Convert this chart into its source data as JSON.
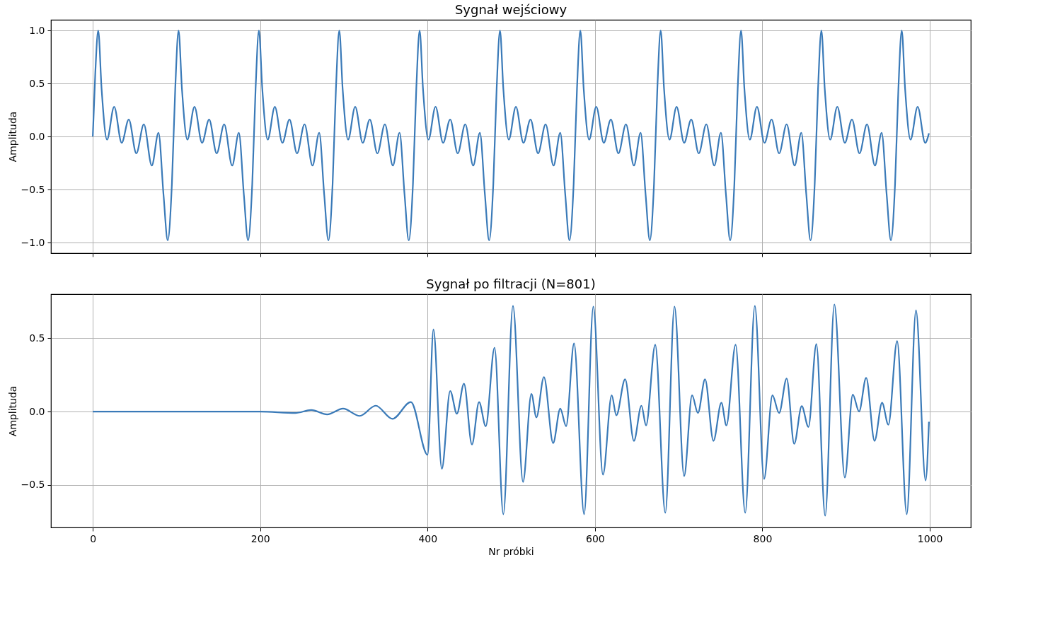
{
  "chart_data": [
    {
      "type": "line",
      "title": "Sygnał wejściowy",
      "ylabel": "Amplituda",
      "x": [
        0,
        3,
        6.5,
        10.5,
        17,
        25.5,
        34.5,
        43,
        52,
        61,
        70.5,
        78.5,
        84.5,
        89.5,
        94.5,
        98.5,
        102.5,
        106.5,
        113,
        121.5,
        130.5,
        139,
        148,
        157,
        166.5,
        174.5,
        180.5,
        185.5,
        190.5,
        194.5,
        198.5,
        202.5,
        209,
        217.5,
        226.5,
        235,
        244,
        253,
        262.5,
        270.5,
        276.5,
        281.5,
        286.5,
        290.5,
        294.5,
        298.5,
        305,
        313.5,
        322.5,
        331,
        340,
        349,
        358.5,
        366.5,
        372.5,
        377.5,
        382.5,
        386.5,
        390.5,
        394.5,
        401,
        409.5,
        418.5,
        427,
        436,
        445,
        454.5,
        462.5,
        468.5,
        473.5,
        478.5,
        482.5,
        486.5,
        490.5,
        497,
        505.5,
        514.5,
        523,
        532,
        541,
        550.5,
        558.5,
        564.5,
        569.5,
        574.5,
        578.5,
        582.5,
        586.5,
        593,
        601.5,
        610.5,
        619,
        628,
        637,
        646.5,
        654.5,
        660.5,
        665.5,
        670.5,
        674.5,
        678.5,
        682.5,
        689,
        697.5,
        706.5,
        715,
        724,
        733,
        742.5,
        750.5,
        756.5,
        761.5,
        766.5,
        770.5,
        774.5,
        778.5,
        785,
        793.5,
        802.5,
        811,
        820,
        829,
        838.5,
        846.5,
        852.5,
        857.5,
        862.5,
        866.5,
        870.5,
        874.5,
        881,
        889.5,
        898.5,
        907,
        916,
        925,
        934.5,
        942.5,
        948.5,
        953.5,
        958.5,
        962.5,
        966.5,
        970.5,
        977,
        985.5,
        994.5,
        999
      ],
      "series": [
        {
          "color": "#3a7ab8",
          "values": [
            0.0,
            0.6,
            1.0,
            0.45,
            -0.03,
            0.28,
            -0.06,
            0.16,
            -0.16,
            0.115,
            -0.275,
            0.035,
            -0.55,
            -0.98,
            -0.45,
            0.45,
            1.0,
            0.45,
            -0.03,
            0.28,
            -0.06,
            0.16,
            -0.16,
            0.115,
            -0.275,
            0.035,
            -0.55,
            -0.98,
            -0.45,
            0.45,
            1.0,
            0.45,
            -0.03,
            0.28,
            -0.06,
            0.16,
            -0.16,
            0.115,
            -0.275,
            0.035,
            -0.55,
            -0.98,
            -0.45,
            0.45,
            1.0,
            0.45,
            -0.03,
            0.28,
            -0.06,
            0.16,
            -0.16,
            0.115,
            -0.275,
            0.035,
            -0.55,
            -0.98,
            -0.45,
            0.45,
            1.0,
            0.45,
            -0.03,
            0.28,
            -0.06,
            0.16,
            -0.16,
            0.115,
            -0.275,
            0.035,
            -0.55,
            -0.98,
            -0.45,
            0.45,
            1.0,
            0.45,
            -0.03,
            0.28,
            -0.06,
            0.16,
            -0.16,
            0.115,
            -0.275,
            0.035,
            -0.55,
            -0.98,
            -0.45,
            0.45,
            1.0,
            0.45,
            -0.03,
            0.28,
            -0.06,
            0.16,
            -0.16,
            0.115,
            -0.275,
            0.035,
            -0.55,
            -0.98,
            -0.45,
            0.45,
            1.0,
            0.45,
            -0.03,
            0.28,
            -0.06,
            0.16,
            -0.16,
            0.115,
            -0.275,
            0.035,
            -0.55,
            -0.98,
            -0.45,
            0.45,
            1.0,
            0.45,
            -0.03,
            0.28,
            -0.06,
            0.16,
            -0.16,
            0.115,
            -0.275,
            0.035,
            -0.55,
            -0.98,
            -0.45,
            0.45,
            1.0,
            0.45,
            -0.03,
            0.28,
            -0.06,
            0.16,
            -0.16,
            0.115,
            -0.275,
            0.035,
            -0.55,
            -0.98,
            -0.45,
            0.45,
            1.0,
            0.45,
            -0.03,
            0.28,
            -0.06,
            0.03
          ]
        }
      ],
      "xlim": [
        -50,
        1049
      ],
      "xticks": [
        0,
        200,
        400,
        600,
        800,
        1000
      ],
      "ylim": [
        -1.1,
        1.1
      ],
      "yticks": [
        {
          "value": -1.0,
          "label": "−1.0"
        },
        {
          "value": -0.5,
          "label": "−0.5"
        },
        {
          "value": 0.0,
          "label": "0.0"
        },
        {
          "value": 0.5,
          "label": "0.5"
        },
        {
          "value": 1.0,
          "label": "1.0"
        }
      ],
      "tick_labels": "y",
      "grid": true,
      "marker": "none",
      "line_style": "solid"
    },
    {
      "type": "line",
      "title": "Sygnał po filtracji (N=801)",
      "xlabel": "Nr próbki",
      "ylabel": "Amplituda",
      "x": [
        0,
        100,
        200,
        242,
        261,
        280,
        299,
        319,
        338,
        358,
        380,
        400,
        407,
        417,
        427,
        435,
        443.5,
        453,
        461.5,
        469.5,
        480,
        490.5,
        502,
        514,
        524,
        530,
        539,
        550,
        558.5,
        565.5,
        575,
        587,
        598,
        609.5,
        620,
        625.5,
        636,
        646.5,
        655.5,
        661,
        672,
        684,
        695,
        706.5,
        716,
        723,
        731.5,
        741.5,
        751,
        757,
        768,
        779.5,
        791,
        802,
        812,
        820,
        829,
        838,
        847,
        855,
        864.5,
        875,
        886,
        898.5,
        908,
        915.5,
        924,
        934,
        943,
        950.5,
        961,
        972.5,
        983.5,
        995,
        999
      ],
      "series": [
        {
          "color": "#3a7ab8",
          "values": [
            0.0,
            0.0,
            0.0,
            -0.01,
            0.01,
            -0.02,
            0.02,
            -0.03,
            0.04,
            -0.05,
            0.065,
            -0.295,
            0.56,
            -0.39,
            0.14,
            -0.015,
            0.19,
            -0.225,
            0.065,
            -0.1,
            0.435,
            -0.7,
            0.72,
            -0.48,
            0.12,
            -0.04,
            0.235,
            -0.215,
            0.02,
            -0.1,
            0.465,
            -0.7,
            0.715,
            -0.43,
            0.11,
            -0.026,
            0.22,
            -0.2,
            0.04,
            -0.095,
            0.455,
            -0.69,
            0.715,
            -0.44,
            0.11,
            -0.01,
            0.22,
            -0.2,
            0.06,
            -0.095,
            0.455,
            -0.69,
            0.72,
            -0.46,
            0.11,
            -0.01,
            0.225,
            -0.22,
            0.037,
            -0.105,
            0.46,
            -0.71,
            0.73,
            -0.45,
            0.115,
            0.0,
            0.23,
            -0.2,
            0.06,
            -0.09,
            0.48,
            -0.7,
            0.69,
            -0.47,
            -0.07
          ]
        }
      ],
      "xlim": [
        -50,
        1049
      ],
      "xticks": [
        0,
        200,
        400,
        600,
        800,
        1000
      ],
      "ylim": [
        -0.79,
        0.8
      ],
      "yticks": [
        {
          "value": -0.5,
          "label": "−0.5"
        },
        {
          "value": 0.0,
          "label": "0.0"
        },
        {
          "value": 0.5,
          "label": "0.5"
        }
      ],
      "grid": true,
      "marker": "none",
      "line_style": "solid"
    }
  ]
}
